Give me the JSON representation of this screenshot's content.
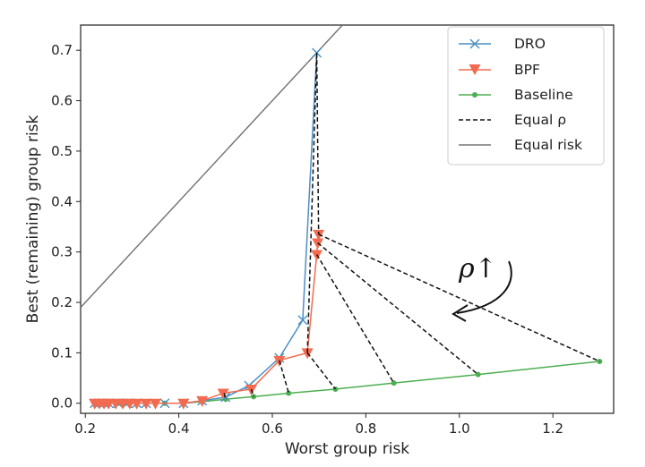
{
  "chart_data": {
    "type": "line",
    "title": "",
    "xlabel": "Worst group risk",
    "ylabel": "Best (remaining) group risk",
    "xlim": [
      0.19,
      1.33
    ],
    "ylim": [
      -0.02,
      0.75
    ],
    "xticks": [
      0.2,
      0.4,
      0.6,
      0.8,
      1.0,
      1.2
    ],
    "xtick_labels": [
      "0.2",
      "0.4",
      "0.6",
      "0.8",
      "1.0",
      "1.2"
    ],
    "yticks": [
      0.0,
      0.1,
      0.2,
      0.3,
      0.4,
      0.5,
      0.6,
      0.7
    ],
    "ytick_labels": [
      "0.0",
      "0.1",
      "0.2",
      "0.3",
      "0.4",
      "0.5",
      "0.6",
      "0.7"
    ],
    "grid": false,
    "legend_position": "top-right",
    "annotation": {
      "text": "ρ↑"
    },
    "series": [
      {
        "name": "DRO",
        "color": "#4a90c4",
        "marker": "x",
        "x": [
          0.22,
          0.23,
          0.24,
          0.25,
          0.27,
          0.29,
          0.31,
          0.33,
          0.37,
          0.41,
          0.45,
          0.5,
          0.55,
          0.615,
          0.665,
          0.695
        ],
        "y": [
          0.0,
          0.0,
          0.0,
          0.0,
          0.0,
          0.0,
          0.0,
          0.0,
          0.0,
          0.0,
          0.005,
          0.012,
          0.035,
          0.09,
          0.165,
          0.695
        ]
      },
      {
        "name": "BPF",
        "color": "#f26b50",
        "marker": "triangle-down",
        "x": [
          0.22,
          0.23,
          0.24,
          0.25,
          0.265,
          0.28,
          0.295,
          0.31,
          0.33,
          0.35,
          0.41,
          0.45,
          0.495,
          0.555,
          0.615,
          0.675,
          0.695,
          0.697,
          0.699
        ],
        "y": [
          0.0,
          0.0,
          0.0,
          0.0,
          0.0,
          0.0,
          0.0,
          0.0,
          0.0,
          0.0,
          0.0,
          0.005,
          0.02,
          0.028,
          0.085,
          0.1,
          0.295,
          0.318,
          0.335
        ]
      },
      {
        "name": "Baseline",
        "color": "#4caf50",
        "marker": "dot",
        "x": [
          0.22,
          0.23,
          0.24,
          0.25,
          0.27,
          0.29,
          0.31,
          0.33,
          0.37,
          0.41,
          0.45,
          0.5,
          0.56,
          0.635,
          0.735,
          0.86,
          1.04,
          1.3
        ],
        "y": [
          0.0,
          0.0,
          0.0,
          0.0,
          0.0,
          0.0,
          0.0,
          0.0,
          0.0,
          0.0,
          0.003,
          0.008,
          0.013,
          0.02,
          0.028,
          0.04,
          0.057,
          0.083
        ]
      },
      {
        "name": "Equal ρ",
        "color": "#111111",
        "style": "dashed",
        "segments": [
          [
            [
              0.497,
              0.02
            ],
            [
              0.5,
              0.008
            ]
          ],
          [
            [
              0.555,
              0.028
            ],
            [
              0.56,
              0.013
            ]
          ],
          [
            [
              0.615,
              0.085
            ],
            [
              0.635,
              0.02
            ]
          ],
          [
            [
              0.675,
              0.1
            ],
            [
              0.695,
              0.695
            ]
          ],
          [
            [
              0.675,
              0.1
            ],
            [
              0.735,
              0.028
            ]
          ],
          [
            [
              0.695,
              0.695
            ],
            [
              0.699,
              0.335
            ]
          ],
          [
            [
              0.695,
              0.295
            ],
            [
              0.86,
              0.04
            ]
          ],
          [
            [
              0.697,
              0.318
            ],
            [
              1.04,
              0.057
            ]
          ],
          [
            [
              0.699,
              0.335
            ],
            [
              1.3,
              0.083
            ]
          ]
        ]
      },
      {
        "name": "Equal risk",
        "color": "#777777",
        "style": "solid",
        "x": [
          0.19,
          0.75
        ],
        "y": [
          0.19,
          0.75
        ]
      }
    ]
  }
}
